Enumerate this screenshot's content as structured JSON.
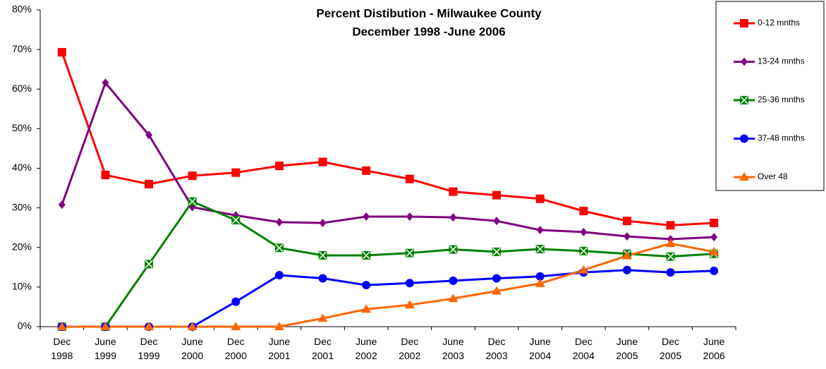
{
  "chart_data": {
    "type": "line",
    "title": "Percent Distibution - Milwaukee County",
    "subtitle": "December 1998 -June 2006",
    "categories": [
      "Dec 1998",
      "June 1999",
      "Dec 1999",
      "June 2000",
      "Dec 2000",
      "June 2001",
      "Dec 2001",
      "June 2002",
      "Dec 2002",
      "June 2003",
      "Dec 2003",
      "June 2004",
      "Dec 2004",
      "June 2005",
      "Dec 2005",
      "June 2006"
    ],
    "ylim": [
      0,
      80
    ],
    "yticks": [
      {
        "value": 0,
        "label": "0%"
      },
      {
        "value": 10,
        "label": "10%"
      },
      {
        "value": 20,
        "label": "20%"
      },
      {
        "value": 30,
        "label": "30%"
      },
      {
        "value": 40,
        "label": "40%"
      },
      {
        "value": 50,
        "label": "50%"
      },
      {
        "value": 60,
        "label": "60%"
      },
      {
        "value": 70,
        "label": "70%"
      },
      {
        "value": 80,
        "label": "80%"
      }
    ],
    "grid": false,
    "legend": "right",
    "series": [
      {
        "name": "0-12 mnths",
        "color": "#ff0000",
        "marker": "square",
        "values": [
          69.3,
          38.3,
          36.0,
          38.1,
          38.9,
          40.6,
          41.6,
          39.4,
          37.3,
          34.1,
          33.2,
          32.3,
          29.2,
          26.7,
          25.6,
          26.2
        ]
      },
      {
        "name": "13-24 mnths",
        "color": "#800080",
        "marker": "diamond",
        "values": [
          30.8,
          61.6,
          48.4,
          30.2,
          28.1,
          26.4,
          26.2,
          27.8,
          27.8,
          27.6,
          26.7,
          24.4,
          23.9,
          22.8,
          22.1,
          22.6
        ]
      },
      {
        "name": "25-36 mnths",
        "color": "#008000",
        "marker": "xsquare",
        "values": [
          0,
          0,
          15.8,
          31.6,
          26.9,
          19.9,
          18.0,
          18.0,
          18.6,
          19.5,
          18.9,
          19.6,
          19.1,
          18.4,
          17.7,
          18.4
        ]
      },
      {
        "name": "37-48 mnths",
        "color": "#0000ff",
        "marker": "circle",
        "values": [
          0,
          0,
          0,
          0,
          6.3,
          13.0,
          12.2,
          10.5,
          11.0,
          11.6,
          12.2,
          12.7,
          13.7,
          14.3,
          13.7,
          14.1
        ]
      },
      {
        "name": "Over 48",
        "color": "#ff6600",
        "marker": "triangle",
        "values": [
          0,
          0,
          0,
          0,
          0,
          0,
          2.1,
          4.4,
          5.5,
          7.1,
          9.0,
          10.9,
          14.3,
          17.9,
          21.0,
          18.9
        ]
      }
    ]
  }
}
